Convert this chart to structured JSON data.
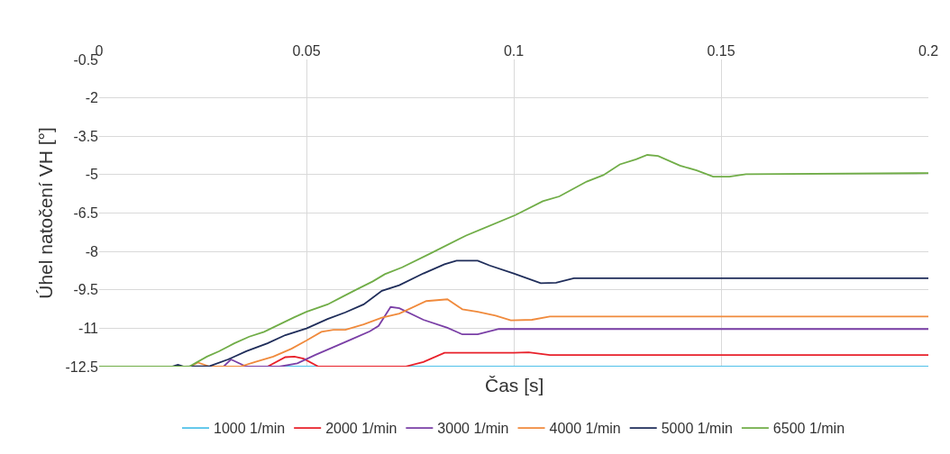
{
  "chart_data": {
    "type": "line",
    "xlabel": "Čas [s]",
    "ylabel": "Úhel natočení VH [°]",
    "xlim": [
      0,
      0.2
    ],
    "xticks": [
      0,
      0.05,
      0.1,
      0.15,
      0.2
    ],
    "ylim": [
      -12.5,
      -0.5
    ],
    "yticks": [
      -0.5,
      -2,
      -3.5,
      -5,
      -6.5,
      -8,
      -9.5,
      -11,
      -12.5
    ],
    "grid": true,
    "legend": "bottom",
    "marker": "none",
    "line_style": "solid",
    "series": [
      {
        "name": "1000 1/min",
        "color": "#4fc1e9",
        "x": [
          0,
          0.2
        ],
        "values": [
          -12.5,
          -12.5
        ]
      },
      {
        "name": "2000 1/min",
        "color": "#e8202a",
        "x": [
          0,
          0.0406,
          0.0449,
          0.0471,
          0.0493,
          0.0529,
          0.0738,
          0.0782,
          0.0833,
          0.1,
          0.1036,
          0.1087,
          0.1233,
          0.2
        ],
        "values": [
          -12.5,
          -12.5,
          -12.13,
          -12.11,
          -12.19,
          -12.5,
          -12.5,
          -12.32,
          -11.96,
          -11.96,
          -11.94,
          -12.05,
          -12.05,
          -12.05
        ]
      },
      {
        "name": "3000 1/min",
        "color": "#7a3fa6",
        "x": [
          0,
          0.03,
          0.0318,
          0.0355,
          0.0435,
          0.0478,
          0.0522,
          0.0565,
          0.0609,
          0.0653,
          0.0674,
          0.0703,
          0.0724,
          0.0782,
          0.084,
          0.0876,
          0.0913,
          0.0964,
          0.1233,
          0.2
        ],
        "values": [
          -12.5,
          -12.5,
          -12.22,
          -12.5,
          -12.5,
          -12.37,
          -12.04,
          -11.74,
          -11.43,
          -11.12,
          -10.91,
          -10.17,
          -10.22,
          -10.67,
          -10.98,
          -11.24,
          -11.24,
          -11.03,
          -11.03,
          -11.03
        ]
      },
      {
        "name": "4000 1/min",
        "color": "#f08a3c",
        "x": [
          0,
          0.022,
          0.0238,
          0.0267,
          0.034,
          0.0376,
          0.042,
          0.0464,
          0.05,
          0.0536,
          0.0565,
          0.0594,
          0.0638,
          0.0682,
          0.0724,
          0.0789,
          0.084,
          0.0876,
          0.0913,
          0.0956,
          0.0993,
          0.1044,
          0.1087,
          0.1233,
          0.2
        ],
        "values": [
          -12.5,
          -12.5,
          -12.34,
          -12.5,
          -12.5,
          -12.32,
          -12.11,
          -11.8,
          -11.48,
          -11.14,
          -11.06,
          -11.06,
          -10.85,
          -10.59,
          -10.43,
          -9.94,
          -9.87,
          -10.26,
          -10.36,
          -10.51,
          -10.69,
          -10.67,
          -10.54,
          -10.54,
          -10.54
        ]
      },
      {
        "name": "5000 1/min",
        "color": "#1f2d5a",
        "x": [
          0,
          0.0175,
          0.019,
          0.0205,
          0.0267,
          0.0311,
          0.0355,
          0.0406,
          0.0449,
          0.05,
          0.0551,
          0.0594,
          0.0638,
          0.0682,
          0.0724,
          0.0782,
          0.0833,
          0.0862,
          0.0913,
          0.0942,
          0.1,
          0.1065,
          0.1102,
          0.1145,
          0.1233,
          0.2
        ],
        "values": [
          -12.5,
          -12.5,
          -12.43,
          -12.5,
          -12.48,
          -12.22,
          -11.9,
          -11.59,
          -11.27,
          -11.01,
          -10.64,
          -10.38,
          -10.07,
          -9.54,
          -9.32,
          -8.86,
          -8.5,
          -8.36,
          -8.36,
          -8.55,
          -8.86,
          -9.24,
          -9.22,
          -9.05,
          -9.05,
          -9.05
        ]
      },
      {
        "name": "6500 1/min",
        "color": "#70ad47",
        "x": [
          0,
          0.0217,
          0.026,
          0.0289,
          0.0326,
          0.0362,
          0.0398,
          0.0427,
          0.0471,
          0.05,
          0.0551,
          0.0587,
          0.0624,
          0.066,
          0.0689,
          0.0731,
          0.08,
          0.0885,
          0.1004,
          0.107,
          0.111,
          0.1176,
          0.1216,
          0.1256,
          0.1295,
          0.1322,
          0.1348,
          0.1401,
          0.1441,
          0.1481,
          0.152,
          0.156,
          0.2
        ],
        "values": [
          -12.5,
          -12.5,
          -12.11,
          -11.9,
          -11.59,
          -11.33,
          -11.14,
          -10.91,
          -10.57,
          -10.36,
          -10.07,
          -9.77,
          -9.46,
          -9.17,
          -8.89,
          -8.62,
          -8.07,
          -7.38,
          -6.58,
          -6.04,
          -5.85,
          -5.27,
          -5.02,
          -4.6,
          -4.4,
          -4.23,
          -4.27,
          -4.65,
          -4.83,
          -5.08,
          -5.08,
          -4.98,
          -4.94
        ]
      }
    ]
  }
}
